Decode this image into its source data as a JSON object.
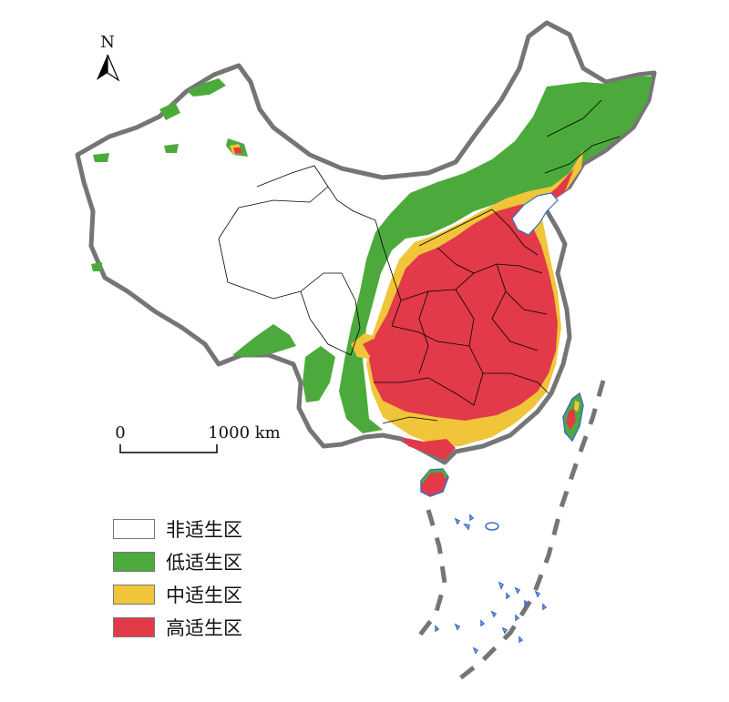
{
  "north_arrow": {
    "label": "N"
  },
  "scale_bar": {
    "start_label": "0",
    "end_label": "1000 km"
  },
  "legend": [
    {
      "label": "非适生区",
      "color": "#ffffff"
    },
    {
      "label": "低适生区",
      "color": "#4caa3c"
    },
    {
      "label": "中适生区",
      "color": "#f0c53a"
    },
    {
      "label": "高适生区",
      "color": "#e23a48"
    }
  ],
  "colors": {
    "border": "#757575",
    "province_line": "#000000",
    "coastline": "#3a6fc4",
    "unsuitable": "#ffffff",
    "low": "#4caa3c",
    "medium": "#f0c53a",
    "high": "#e23a48"
  }
}
